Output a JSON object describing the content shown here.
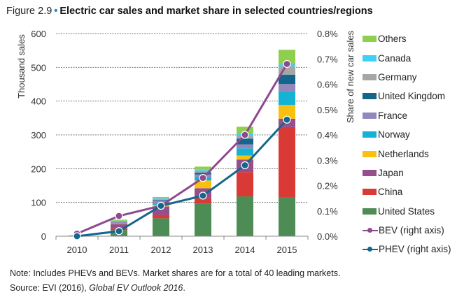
{
  "title": {
    "figure_label": "Figure 2.9",
    "bullet": "•",
    "text": "Electric car sales and market share in selected countries/regions"
  },
  "notes": {
    "note": "Note: Includes PHEVs and BEVs. Market shares are for a total of 40 leading markets.",
    "source_prefix": "Source: EVI (2016), ",
    "source_title": "Global EV Outlook 2016",
    "source_suffix": "."
  },
  "chart_data": {
    "type": "bar",
    "stacked": true,
    "title": "Electric car sales and market share in selected countries/regions",
    "categories": [
      "2010",
      "2011",
      "2012",
      "2013",
      "2014",
      "2015"
    ],
    "ylabel": "Thousand sales",
    "ylim": [
      0,
      600
    ],
    "yticks": [
      "0",
      "100",
      "200",
      "300",
      "400",
      "500",
      "600"
    ],
    "y2label": "Share of new car sales",
    "y2lim": [
      0,
      0.8
    ],
    "y2ticks": [
      "0.0%",
      "0.1%",
      "0.2%",
      "0.3%",
      "0.4%",
      "0.5%",
      "0.6%",
      "0.7%",
      "0.8%"
    ],
    "grid": "horizontal dotted",
    "legend_position": "right",
    "series": [
      {
        "name": "United States",
        "color": "#4e8c55",
        "values": [
          1,
          18,
          53,
          97,
          118,
          114
        ]
      },
      {
        "name": "China",
        "color": "#d93a36",
        "values": [
          0.5,
          5,
          10,
          15,
          72,
          209
        ]
      },
      {
        "name": "Japan",
        "color": "#94508c",
        "values": [
          0.3,
          13,
          25,
          30,
          37,
          25
        ]
      },
      {
        "name": "Netherlands",
        "color": "#f9c00f",
        "values": [
          0.1,
          1,
          5,
          23,
          12,
          41
        ]
      },
      {
        "name": "Norway",
        "color": "#14b2d4",
        "values": [
          0.1,
          2,
          4,
          10,
          21,
          41
        ]
      },
      {
        "name": "France",
        "color": "#9189bc",
        "values": [
          0.1,
          3,
          9,
          8,
          12,
          21
        ]
      },
      {
        "name": "United Kingdom",
        "color": "#13668c",
        "values": [
          0.1,
          1,
          2,
          5,
          17,
          27
        ]
      },
      {
        "name": "Germany",
        "color": "#a6a6a6",
        "values": [
          0.1,
          2,
          3,
          6,
          10,
          25
        ]
      },
      {
        "name": "Canada",
        "color": "#3ed1f4",
        "values": [
          0.1,
          1,
          2,
          4,
          6,
          6
        ]
      },
      {
        "name": "Others",
        "color": "#8fcf4e",
        "values": [
          0.2,
          3,
          3,
          8,
          19,
          43
        ]
      }
    ],
    "lines": [
      {
        "name": "BEV (right axis)",
        "color": "#8d4a8f",
        "axis": "right",
        "values": [
          0.01,
          0.08,
          0.12,
          0.23,
          0.4,
          0.68
        ]
      },
      {
        "name": "PHEV (right axis)",
        "color": "#15668e",
        "axis": "right",
        "values": [
          0.0,
          0.02,
          0.12,
          0.16,
          0.28,
          0.46
        ]
      }
    ],
    "legend_order": [
      "Others",
      "Canada",
      "Germany",
      "United Kingdom",
      "France",
      "Norway",
      "Netherlands",
      "Japan",
      "China",
      "United States",
      "BEV (right axis)",
      "PHEV (right axis)"
    ]
  }
}
